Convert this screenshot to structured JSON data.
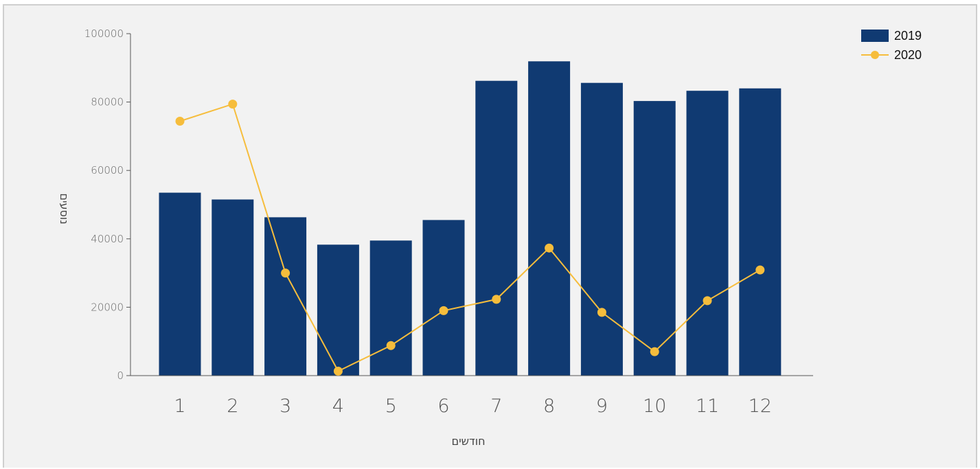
{
  "chart_data": {
    "type": "bar",
    "title": "",
    "xlabel": "חודשים",
    "ylabel": "נוסעים",
    "categories": [
      "1",
      "2",
      "3",
      "4",
      "5",
      "6",
      "7",
      "8",
      "9",
      "10",
      "11",
      "12"
    ],
    "ylim": [
      0,
      100000
    ],
    "yticks": [
      "0",
      "20000",
      "40000",
      "60000",
      "80000",
      "100000"
    ],
    "grid": false,
    "legend_position": "top-right",
    "series": [
      {
        "name": "2019",
        "type": "bar",
        "color": "#103a72",
        "values": [
          53500,
          51500,
          46300,
          38300,
          39500,
          45500,
          86200,
          91900,
          85600,
          80300,
          83300,
          84000
        ]
      },
      {
        "name": "2020",
        "type": "line",
        "color": "#f6bd3c",
        "values": [
          74400,
          79400,
          30000,
          1300,
          8800,
          19000,
          22300,
          37300,
          18500,
          7000,
          21900,
          30900
        ]
      }
    ]
  }
}
